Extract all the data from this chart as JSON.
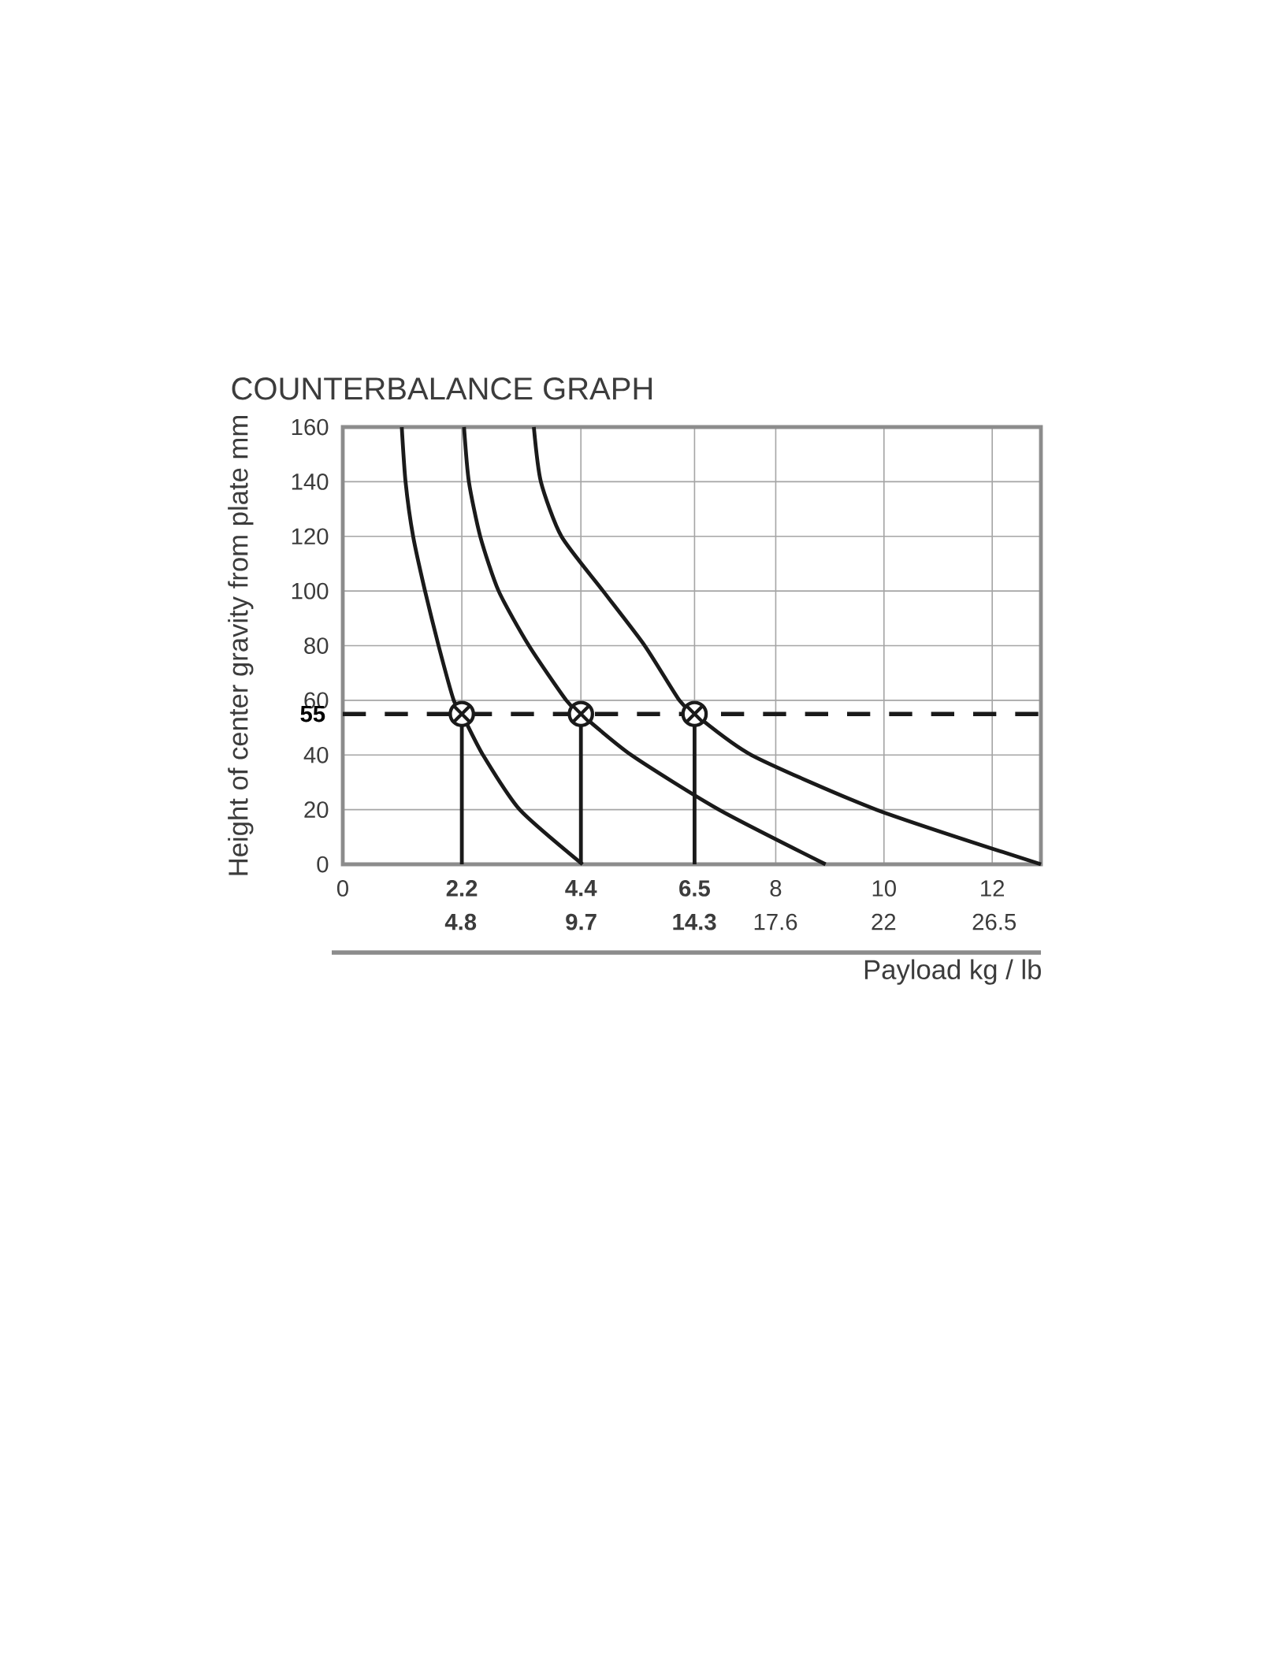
{
  "chart_data": {
    "type": "line",
    "title": "COUNTERBALANCE GRAPH",
    "xlabel": "Payload kg / lb",
    "ylabel": "Height of center gravity from plate mm",
    "xlim": [
      0,
      12.9
    ],
    "xticks": [
      0,
      2.2,
      4.4,
      6.5,
      8,
      10,
      12
    ],
    "x2lim": [
      0,
      28.4
    ],
    "x2ticks": [
      4.8,
      9.7,
      14.3,
      17.6,
      22,
      26.5
    ],
    "ylim": [
      0,
      160
    ],
    "yticks": [
      0,
      20,
      40,
      60,
      80,
      100,
      120,
      140,
      160
    ],
    "grid": true,
    "series": [
      {
        "color": "#1a1a1a",
        "x": [
          1.09,
          1.16,
          1.3,
          1.52,
          1.77,
          2.05,
          2.2,
          2.59,
          3.27,
          4.43
        ],
        "values": [
          160,
          140,
          120,
          100,
          80,
          60,
          55,
          40,
          20,
          0
        ]
      },
      {
        "color": "#1a1a1a",
        "x": [
          2.24,
          2.33,
          2.54,
          2.88,
          3.44,
          4.13,
          4.4,
          5.33,
          6.95,
          8.92
        ],
        "values": [
          160,
          140,
          120,
          100,
          80,
          60,
          55,
          40,
          20,
          0
        ]
      },
      {
        "color": "#1a1a1a",
        "x": [
          3.53,
          3.66,
          4.04,
          4.81,
          5.58,
          6.22,
          6.5,
          7.55,
          9.86,
          12.9
        ],
        "values": [
          160,
          140,
          120,
          100,
          80,
          60,
          55,
          40,
          20,
          0
        ]
      },
      {
        "type": "lollipop",
        "color": "#1a1a1a",
        "marker": "circle",
        "x": [
          2.2,
          4.4,
          6.5
        ],
        "values": [
          55,
          55,
          55
        ]
      }
    ],
    "ref_lines": [
      {
        "axis": "y",
        "value": 55,
        "label": "55",
        "line_style": "dashed",
        "color": "#1a1a1a"
      }
    ]
  }
}
